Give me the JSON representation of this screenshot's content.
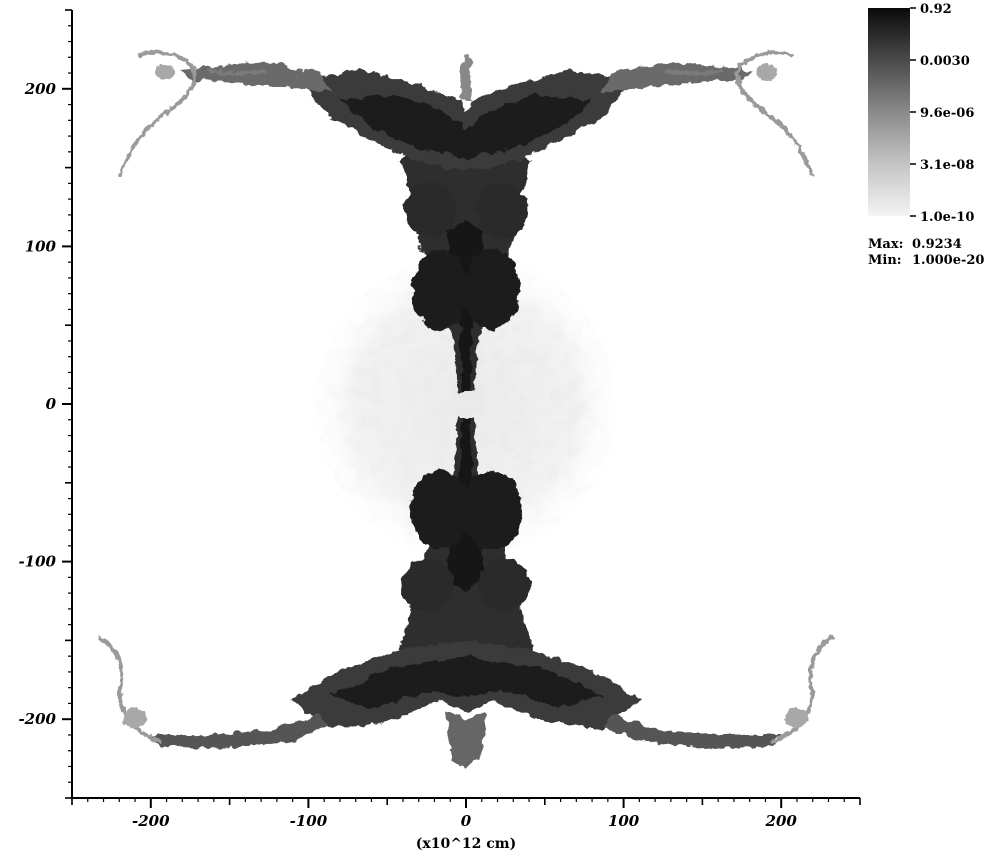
{
  "chart_data": {
    "type": "heatmap",
    "title": "",
    "xlabel": "(x10^12 cm)",
    "ylabel": "",
    "xlim": [
      -250,
      250
    ],
    "ylim": [
      -250,
      250
    ],
    "x_ticks": [
      -200,
      -100,
      0,
      100,
      200
    ],
    "x_tick_labels": [
      "-200",
      "-100",
      "0",
      "100",
      "200"
    ],
    "y_ticks": [
      -200,
      -100,
      0,
      100,
      200
    ],
    "y_tick_labels": [
      "-200",
      "-100",
      "0",
      "100",
      "200"
    ],
    "colorscale": "grayscale-log",
    "colorbar": {
      "ticks": [
        "0.92",
        "0.0030",
        "9.6e-06",
        "3.1e-08",
        "1.0e-10"
      ],
      "max_label": "Max:",
      "max_value": "0.9234",
      "min_label": "Min:",
      "min_value": "1.000e-20"
    },
    "grid": false
  }
}
